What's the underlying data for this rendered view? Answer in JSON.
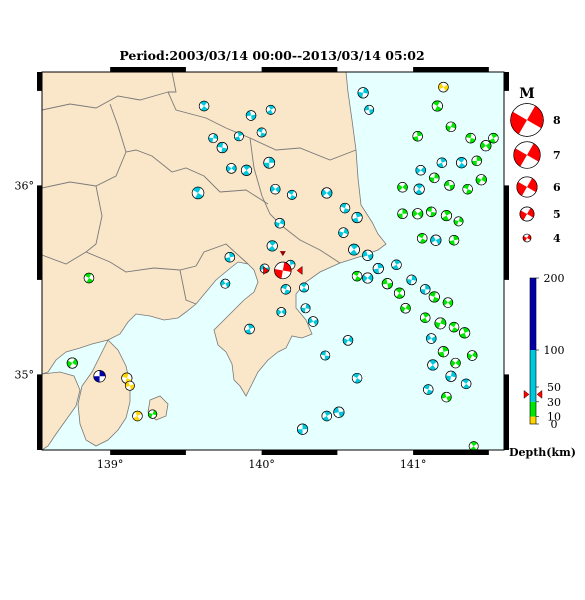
{
  "title": "Period:2003/03/14 00:00--2013/03/14 05:02",
  "map": {
    "lon_min": 138.55,
    "lon_max": 141.6,
    "lat_min": 34.6,
    "lat_max": 36.6,
    "lon_ticks": [
      {
        "value": 139,
        "label": "139°"
      },
      {
        "value": 140,
        "label": "140°"
      },
      {
        "value": 141,
        "label": "141°"
      }
    ],
    "lat_ticks": [
      {
        "value": 35,
        "label": "35°"
      },
      {
        "value": 36,
        "label": "36°"
      }
    ],
    "colors": {
      "land": "#fae6c8",
      "sea": "#e6ffff",
      "border": "#7a7a7a",
      "coast": "#777777"
    }
  },
  "magnitude_legend": {
    "title": "M",
    "items": [
      {
        "label": "8",
        "mag": 8
      },
      {
        "label": "7",
        "mag": 7
      },
      {
        "label": "6",
        "mag": 6
      },
      {
        "label": "5",
        "mag": 5
      },
      {
        "label": "4",
        "mag": 4
      }
    ],
    "color": "#ff0000"
  },
  "depth_legend": {
    "title": "Depth(km)",
    "ticks": [
      {
        "value": 0,
        "label": "0"
      },
      {
        "value": 10,
        "label": "10"
      },
      {
        "value": 30,
        "label": "30"
      },
      {
        "value": 50,
        "label": "50"
      },
      {
        "value": 100,
        "label": "100"
      },
      {
        "value": 200,
        "label": "200"
      }
    ],
    "segments": [
      {
        "from": 0,
        "to": 10,
        "color": "#ffd700"
      },
      {
        "from": 10,
        "to": 30,
        "color": "#00e600"
      },
      {
        "from": 30,
        "to": 100,
        "color": "#00c8dc"
      },
      {
        "from": 100,
        "to": 200,
        "color": "#0000aa"
      }
    ],
    "marker_depth": 40
  },
  "highlight": {
    "lon": 140.14,
    "lat": 35.55,
    "mag": 5.4,
    "depth": 40,
    "color": "#ff0000"
  },
  "chart_data": {
    "type": "scatter",
    "title": "Period:2003/03/14 00:00--2013/03/14 05:02",
    "xlabel": "",
    "ylabel": "",
    "xlim": [
      138.55,
      141.6
    ],
    "ylim": [
      34.6,
      36.6
    ],
    "point_fields": [
      "lon",
      "lat",
      "mag",
      "depth_km",
      "strike_deg"
    ],
    "points": [
      [
        138.86,
        35.51,
        4.3,
        20,
        30
      ],
      [
        138.75,
        35.06,
        4.4,
        20,
        120
      ],
      [
        138.93,
        34.99,
        4.6,
        150,
        90
      ],
      [
        139.11,
        34.98,
        4.4,
        5,
        20
      ],
      [
        139.13,
        34.94,
        4.2,
        5,
        160
      ],
      [
        139.18,
        34.78,
        4.3,
        5,
        60
      ],
      [
        139.28,
        34.79,
        4.1,
        20,
        110
      ],
      [
        139.58,
        35.96,
        4.6,
        60,
        30
      ],
      [
        139.79,
        35.62,
        4.3,
        60,
        80
      ],
      [
        139.76,
        35.48,
        4.2,
        60,
        150
      ],
      [
        139.62,
        36.42,
        4.3,
        60,
        40
      ],
      [
        139.68,
        36.25,
        4.2,
        60,
        100
      ],
      [
        139.74,
        36.2,
        4.4,
        60,
        10
      ],
      [
        139.85,
        36.26,
        4.2,
        60,
        70
      ],
      [
        139.8,
        36.09,
        4.3,
        60,
        130
      ],
      [
        139.9,
        36.08,
        4.4,
        60,
        50
      ],
      [
        139.93,
        36.37,
        4.3,
        60,
        170
      ],
      [
        140.0,
        36.28,
        4.2,
        60,
        20
      ],
      [
        140.05,
        36.12,
        4.5,
        60,
        90
      ],
      [
        140.06,
        36.4,
        4.2,
        60,
        60
      ],
      [
        140.09,
        35.98,
        4.3,
        60,
        140
      ],
      [
        140.2,
        35.95,
        4.2,
        60,
        30
      ],
      [
        140.12,
        35.8,
        4.3,
        60,
        110
      ],
      [
        140.07,
        35.68,
        4.4,
        60,
        50
      ],
      [
        140.02,
        35.56,
        4.2,
        60,
        160
      ],
      [
        140.19,
        35.58,
        4.2,
        60,
        80
      ],
      [
        140.16,
        35.45,
        4.3,
        60,
        20
      ],
      [
        140.13,
        35.33,
        4.2,
        60,
        130
      ],
      [
        139.92,
        35.24,
        4.3,
        60,
        70
      ],
      [
        140.29,
        35.35,
        4.2,
        60,
        100
      ],
      [
        140.28,
        35.46,
        4.2,
        60,
        40
      ],
      [
        140.34,
        35.28,
        4.3,
        60,
        150
      ],
      [
        140.42,
        35.1,
        4.2,
        60,
        10
      ],
      [
        140.57,
        35.18,
        4.3,
        60,
        120
      ],
      [
        140.43,
        34.78,
        4.3,
        60,
        60
      ],
      [
        140.51,
        34.8,
        4.4,
        60,
        170
      ],
      [
        140.63,
        34.98,
        4.3,
        60,
        30
      ],
      [
        140.27,
        34.71,
        4.4,
        60,
        90
      ],
      [
        140.43,
        35.96,
        4.4,
        60,
        140
      ],
      [
        140.55,
        35.88,
        4.3,
        60,
        20
      ],
      [
        140.63,
        35.83,
        4.4,
        60,
        70
      ],
      [
        140.54,
        35.75,
        4.3,
        60,
        110
      ],
      [
        140.61,
        35.66,
        4.5,
        60,
        50
      ],
      [
        140.7,
        35.63,
        4.4,
        60,
        160
      ],
      [
        140.77,
        35.56,
        4.4,
        60,
        80
      ],
      [
        140.63,
        35.52,
        4.3,
        20,
        30
      ],
      [
        140.7,
        35.51,
        4.4,
        60,
        130
      ],
      [
        140.89,
        35.58,
        4.3,
        60,
        60
      ],
      [
        140.99,
        35.5,
        4.3,
        60,
        100
      ],
      [
        140.83,
        35.48,
        4.4,
        20,
        170
      ],
      [
        140.91,
        35.43,
        4.4,
        20,
        40
      ],
      [
        140.95,
        35.35,
        4.3,
        20,
        120
      ],
      [
        141.08,
        35.45,
        4.3,
        60,
        90
      ],
      [
        141.14,
        35.41,
        4.4,
        20,
        20
      ],
      [
        141.23,
        35.38,
        4.3,
        20,
        140
      ],
      [
        141.08,
        35.3,
        4.3,
        20,
        60
      ],
      [
        141.18,
        35.27,
        4.5,
        20,
        110
      ],
      [
        141.27,
        35.25,
        4.3,
        20,
        30
      ],
      [
        141.12,
        35.19,
        4.3,
        60,
        150
      ],
      [
        141.2,
        35.12,
        4.4,
        20,
        80
      ],
      [
        141.28,
        35.06,
        4.3,
        20,
        130
      ],
      [
        141.13,
        35.05,
        4.4,
        60,
        50
      ],
      [
        141.25,
        34.99,
        4.4,
        60,
        100
      ],
      [
        141.1,
        34.92,
        4.3,
        60,
        20
      ],
      [
        141.22,
        34.88,
        4.3,
        20,
        160
      ],
      [
        141.34,
        35.22,
        4.4,
        20,
        70
      ],
      [
        141.39,
        35.1,
        4.3,
        20,
        120
      ],
      [
        141.35,
        34.95,
        4.3,
        60,
        40
      ],
      [
        140.93,
        35.85,
        4.3,
        20,
        90
      ],
      [
        141.03,
        35.85,
        4.4,
        20,
        140
      ],
      [
        141.12,
        35.86,
        4.3,
        20,
        10
      ],
      [
        141.22,
        35.84,
        4.4,
        20,
        60
      ],
      [
        141.3,
        35.81,
        4.2,
        20,
        110
      ],
      [
        141.06,
        35.72,
        4.3,
        20,
        30
      ],
      [
        141.15,
        35.71,
        4.4,
        60,
        150
      ],
      [
        141.27,
        35.71,
        4.3,
        20,
        80
      ],
      [
        140.93,
        35.99,
        4.3,
        20,
        130
      ],
      [
        141.04,
        35.98,
        4.4,
        60,
        50
      ],
      [
        141.14,
        36.04,
        4.3,
        20,
        100
      ],
      [
        141.24,
        36.0,
        4.3,
        20,
        170
      ],
      [
        141.36,
        35.98,
        4.3,
        20,
        20
      ],
      [
        141.45,
        36.03,
        4.4,
        20,
        120
      ],
      [
        141.19,
        36.12,
        4.3,
        60,
        70
      ],
      [
        141.32,
        36.12,
        4.4,
        60,
        40
      ],
      [
        141.42,
        36.13,
        4.3,
        20,
        90
      ],
      [
        141.48,
        36.21,
        4.4,
        20,
        140
      ],
      [
        141.38,
        36.25,
        4.3,
        20,
        10
      ],
      [
        141.53,
        36.25,
        4.3,
        20,
        60
      ],
      [
        141.25,
        36.31,
        4.3,
        20,
        110
      ],
      [
        141.16,
        36.42,
        4.4,
        20,
        30
      ],
      [
        141.2,
        36.52,
        4.3,
        5,
        150
      ],
      [
        141.03,
        36.26,
        4.3,
        20,
        80
      ],
      [
        141.05,
        36.08,
        4.3,
        60,
        130
      ],
      [
        141.4,
        34.62,
        4.2,
        20,
        50
      ],
      [
        140.67,
        36.49,
        4.4,
        60,
        100
      ],
      [
        140.71,
        36.4,
        4.2,
        60,
        170
      ]
    ]
  }
}
